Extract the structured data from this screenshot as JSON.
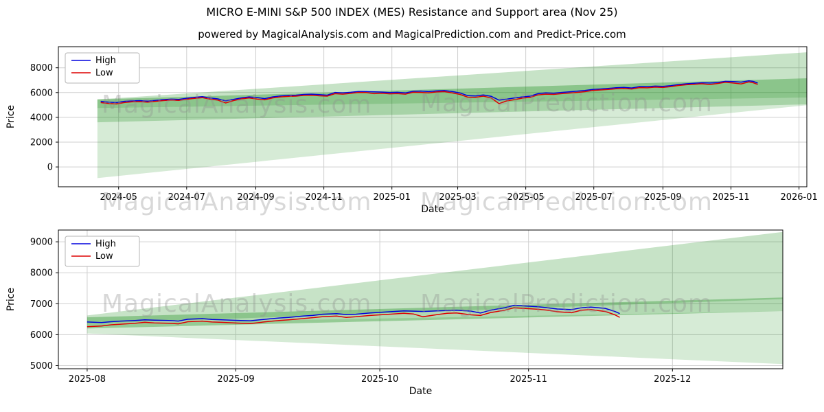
{
  "page": {
    "title": "MICRO E-MINI S&P 500 INDEX (MES) Resistance and Support area (Nov 25)",
    "subtitle": "powered by MagicalAnalysis.com and MagicalPrediction.com and Predict-Price.com"
  },
  "watermarks": {
    "analysis": "MagicalAnalysis.com",
    "prediction": "MagicalPrediction.com"
  },
  "chart_data": [
    {
      "type": "line",
      "title": "MICRO E-MINI S&P 500 INDEX (MES) Resistance and Support area (Nov 25)",
      "subtitle": "powered by MagicalAnalysis.com and MagicalPrediction.com and Predict-Price.com",
      "xlabel": "Date",
      "ylabel": "Price",
      "legend_position": "upper left",
      "grid": true,
      "band_color": "#008000",
      "xlim": [
        "2024-03-08",
        "2026-01-08"
      ],
      "ylim": [
        -1600,
        9700
      ],
      "y_ticks": [
        0,
        2000,
        4000,
        6000,
        8000
      ],
      "x_ticks": [
        {
          "date": "2024-05-01",
          "label": "2024-05"
        },
        {
          "date": "2024-07-01",
          "label": "2024-07"
        },
        {
          "date": "2024-09-01",
          "label": "2024-09"
        },
        {
          "date": "2024-11-01",
          "label": "2024-11"
        },
        {
          "date": "2025-01-01",
          "label": "2025-01"
        },
        {
          "date": "2025-03-01",
          "label": "2025-03"
        },
        {
          "date": "2025-05-01",
          "label": "2025-05"
        },
        {
          "date": "2025-07-01",
          "label": "2025-07"
        },
        {
          "date": "2025-09-01",
          "label": "2025-09"
        },
        {
          "date": "2025-11-01",
          "label": "2025-11"
        },
        {
          "date": "2026-01-01",
          "label": "2026-01"
        }
      ],
      "bands": [
        {
          "x0": "2024-04-12",
          "x1": "2026-01-08",
          "left": [
            3600,
            5450
          ],
          "right": [
            5050,
            9250
          ],
          "opacity": 0.22
        },
        {
          "x0": "2024-04-12",
          "x1": "2026-01-08",
          "left": [
            4750,
            5450
          ],
          "right": [
            5600,
            7150
          ],
          "opacity": 0.3
        },
        {
          "x0": "2024-04-12",
          "x1": "2026-01-08",
          "left": [
            -900,
            4750
          ],
          "right": [
            4980,
            5600
          ],
          "opacity": 0.16
        }
      ],
      "series": [
        {
          "name": "High",
          "key": "high",
          "color": "#0000dd"
        },
        {
          "name": "Low",
          "key": "low",
          "color": "#dd0000"
        }
      ],
      "x": [
        "2024-04-15",
        "2024-04-22",
        "2024-04-29",
        "2024-05-06",
        "2024-05-13",
        "2024-05-20",
        "2024-05-27",
        "2024-06-03",
        "2024-06-10",
        "2024-06-17",
        "2024-06-24",
        "2024-07-01",
        "2024-07-08",
        "2024-07-15",
        "2024-07-22",
        "2024-07-29",
        "2024-08-05",
        "2024-08-12",
        "2024-08-19",
        "2024-08-26",
        "2024-09-02",
        "2024-09-09",
        "2024-09-16",
        "2024-09-23",
        "2024-09-30",
        "2024-10-07",
        "2024-10-14",
        "2024-10-21",
        "2024-10-28",
        "2024-11-04",
        "2024-11-11",
        "2024-11-18",
        "2024-11-25",
        "2024-12-02",
        "2024-12-09",
        "2024-12-16",
        "2024-12-23",
        "2024-12-30",
        "2025-01-06",
        "2025-01-13",
        "2025-01-20",
        "2025-01-27",
        "2025-02-03",
        "2025-02-10",
        "2025-02-17",
        "2025-02-24",
        "2025-03-03",
        "2025-03-10",
        "2025-03-17",
        "2025-03-24",
        "2025-03-31",
        "2025-04-07",
        "2025-04-14",
        "2025-04-21",
        "2025-04-28",
        "2025-05-05",
        "2025-05-12",
        "2025-05-19",
        "2025-05-26",
        "2025-06-02",
        "2025-06-09",
        "2025-06-16",
        "2025-06-23",
        "2025-06-30",
        "2025-07-07",
        "2025-07-14",
        "2025-07-21",
        "2025-07-28",
        "2025-08-04",
        "2025-08-11",
        "2025-08-18",
        "2025-08-25",
        "2025-09-01",
        "2025-09-08",
        "2025-09-15",
        "2025-09-22",
        "2025-09-29",
        "2025-10-06",
        "2025-10-13",
        "2025-10-20",
        "2025-10-27",
        "2025-11-03",
        "2025-11-10",
        "2025-11-17",
        "2025-11-21",
        "2025-11-25"
      ],
      "high": [
        5290,
        5230,
        5190,
        5290,
        5330,
        5350,
        5310,
        5370,
        5430,
        5470,
        5450,
        5540,
        5610,
        5670,
        5570,
        5490,
        5330,
        5450,
        5570,
        5650,
        5600,
        5510,
        5650,
        5730,
        5770,
        5790,
        5850,
        5870,
        5840,
        5790,
        6010,
        5970,
        6020,
        6090,
        6080,
        6060,
        6040,
        6000,
        6020,
        5970,
        6100,
        6120,
        6080,
        6130,
        6160,
        6090,
        5970,
        5750,
        5730,
        5810,
        5700,
        5390,
        5470,
        5570,
        5650,
        5710,
        5910,
        5970,
        5950,
        6010,
        6060,
        6110,
        6170,
        6250,
        6290,
        6330,
        6390,
        6420,
        6370,
        6480,
        6470,
        6520,
        6500,
        6560,
        6650,
        6710,
        6750,
        6790,
        6770,
        6810,
        6910,
        6890,
        6840,
        6950,
        6900,
        6770
      ],
      "low": [
        5190,
        5120,
        5080,
        5190,
        5250,
        5270,
        5230,
        5290,
        5350,
        5390,
        5370,
        5460,
        5530,
        5590,
        5470,
        5390,
        5160,
        5350,
        5490,
        5570,
        5480,
        5410,
        5570,
        5650,
        5690,
        5710,
        5770,
        5790,
        5740,
        5710,
        5910,
        5870,
        5940,
        6010,
        6000,
        5910,
        5950,
        5900,
        5920,
        5870,
        6020,
        6010,
        5980,
        6050,
        6080,
        5970,
        5850,
        5630,
        5610,
        5710,
        5560,
        5110,
        5330,
        5430,
        5550,
        5610,
        5810,
        5870,
        5850,
        5910,
        5960,
        6010,
        6070,
        6170,
        6210,
        6250,
        6310,
        6340,
        6290,
        6400,
        6380,
        6440,
        6410,
        6480,
        6570,
        6630,
        6670,
        6710,
        6650,
        6730,
        6830,
        6770,
        6700,
        6860,
        6790,
        6660
      ]
    },
    {
      "type": "line",
      "title": "",
      "xlabel": "Date",
      "ylabel": "Price",
      "legend_position": "upper left",
      "grid": true,
      "band_color": "#008000",
      "xlim": [
        "2025-07-26",
        "2025-12-24"
      ],
      "ylim": [
        4900,
        9380
      ],
      "y_ticks": [
        5000,
        6000,
        7000,
        8000,
        9000
      ],
      "x_ticks": [
        {
          "date": "2025-08-01",
          "label": "2025-08"
        },
        {
          "date": "2025-09-01",
          "label": "2025-09"
        },
        {
          "date": "2025-10-01",
          "label": "2025-10"
        },
        {
          "date": "2025-11-01",
          "label": "2025-11"
        },
        {
          "date": "2025-12-01",
          "label": "2025-12"
        }
      ],
      "bands": [
        {
          "x0": "2025-08-01",
          "x1": "2025-12-24",
          "left": [
            6350,
            6620
          ],
          "right": [
            7150,
            9320
          ],
          "opacity": 0.22
        },
        {
          "x0": "2025-08-01",
          "x1": "2025-12-24",
          "left": [
            6200,
            6560
          ],
          "right": [
            6760,
            7200
          ],
          "opacity": 0.3
        },
        {
          "x0": "2025-08-01",
          "x1": "2025-12-24",
          "left": [
            6040,
            6350
          ],
          "right": [
            5050,
            6760
          ],
          "opacity": 0.16
        }
      ],
      "series": [
        {
          "name": "High",
          "key": "high",
          "color": "#0000dd"
        },
        {
          "name": "Low",
          "key": "low",
          "color": "#dd0000"
        }
      ],
      "x": [
        "2025-08-01",
        "2025-08-04",
        "2025-08-06",
        "2025-08-08",
        "2025-08-11",
        "2025-08-13",
        "2025-08-15",
        "2025-08-18",
        "2025-08-20",
        "2025-08-22",
        "2025-08-25",
        "2025-08-27",
        "2025-08-29",
        "2025-09-02",
        "2025-09-04",
        "2025-09-08",
        "2025-09-10",
        "2025-09-12",
        "2025-09-15",
        "2025-09-17",
        "2025-09-19",
        "2025-09-22",
        "2025-09-24",
        "2025-09-26",
        "2025-09-29",
        "2025-10-01",
        "2025-10-03",
        "2025-10-06",
        "2025-10-08",
        "2025-10-10",
        "2025-10-13",
        "2025-10-15",
        "2025-10-17",
        "2025-10-20",
        "2025-10-22",
        "2025-10-24",
        "2025-10-27",
        "2025-10-29",
        "2025-10-31",
        "2025-11-03",
        "2025-11-05",
        "2025-11-07",
        "2025-11-10",
        "2025-11-12",
        "2025-11-14",
        "2025-11-17",
        "2025-11-19",
        "2025-11-20"
      ],
      "high": [
        6410,
        6390,
        6420,
        6440,
        6460,
        6480,
        6470,
        6460,
        6440,
        6500,
        6520,
        6490,
        6480,
        6460,
        6450,
        6510,
        6540,
        6560,
        6600,
        6620,
        6660,
        6680,
        6650,
        6660,
        6700,
        6720,
        6740,
        6770,
        6760,
        6750,
        6770,
        6780,
        6790,
        6760,
        6700,
        6790,
        6870,
        6950,
        6930,
        6900,
        6870,
        6830,
        6810,
        6870,
        6890,
        6850,
        6750,
        6680
      ],
      "low": [
        6260,
        6280,
        6320,
        6340,
        6370,
        6400,
        6380,
        6370,
        6350,
        6420,
        6440,
        6410,
        6400,
        6370,
        6360,
        6430,
        6460,
        6480,
        6520,
        6550,
        6580,
        6600,
        6560,
        6580,
        6620,
        6640,
        6660,
        6690,
        6670,
        6580,
        6650,
        6690,
        6700,
        6640,
        6620,
        6710,
        6790,
        6870,
        6850,
        6820,
        6790,
        6740,
        6710,
        6790,
        6810,
        6750,
        6640,
        6560
      ]
    }
  ]
}
